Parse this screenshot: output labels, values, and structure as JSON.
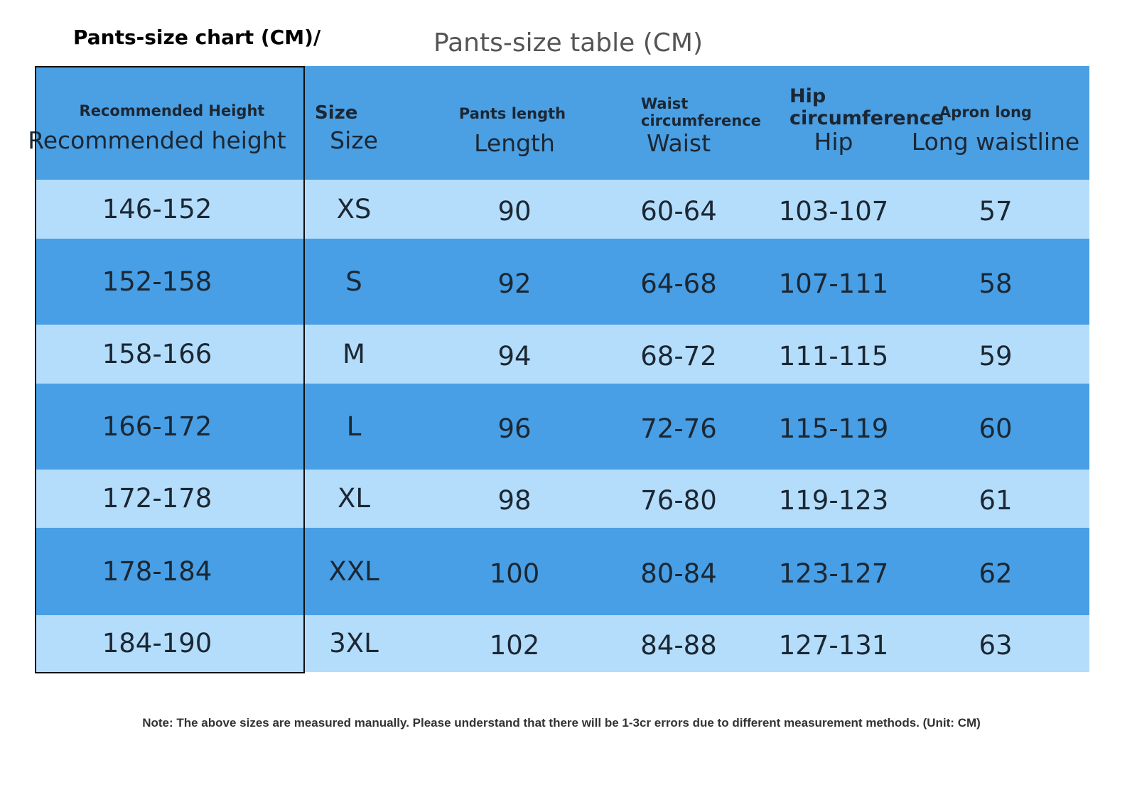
{
  "header": {
    "title": "Pants-size chart (CM)/",
    "subtitle": "Pants-size table (CM)"
  },
  "table": {
    "columns": [
      {
        "label": "Recommended Height",
        "sublabel": "Recommended height"
      },
      {
        "label": "Size",
        "sublabel": "Size"
      },
      {
        "label": "Pants length",
        "sublabel": "Length"
      },
      {
        "label": "Waist circumference",
        "sublabel": "Waist"
      },
      {
        "label": "Hip circumference",
        "sublabel": "Hip"
      },
      {
        "label": "Apron long",
        "sublabel": "Long waistline"
      }
    ],
    "rows": [
      [
        "146-152",
        "XS",
        "90",
        "60-64",
        "103-107",
        "57"
      ],
      [
        "152-158",
        "S",
        "92",
        "64-68",
        "107-111",
        "58"
      ],
      [
        "158-166",
        "M",
        "94",
        "68-72",
        "111-115",
        "59"
      ],
      [
        "166-172",
        "L",
        "96",
        "72-76",
        "115-119",
        "60"
      ],
      [
        "172-178",
        "XL",
        "98",
        "76-80",
        "119-123",
        "61"
      ],
      [
        "178-184",
        "XXL",
        "100",
        "80-84",
        "123-127",
        "62"
      ],
      [
        "184-190",
        "3XL",
        "102",
        "84-88",
        "127-131",
        "63"
      ]
    ]
  },
  "note": "Note: The above sizes are measured manually. Please understand that there will be 1-3cr errors due to different measurement methods. (Unit: CM)"
}
